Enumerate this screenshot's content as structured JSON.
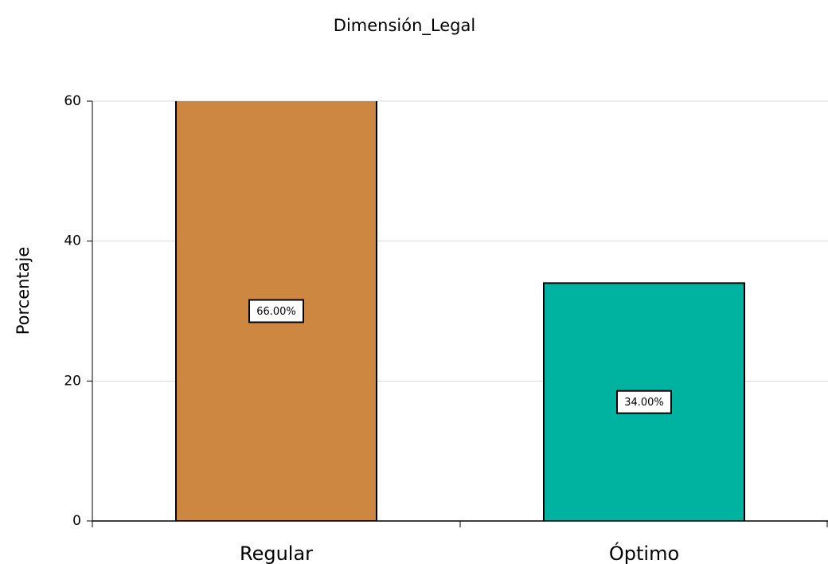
{
  "chart_data": {
    "type": "bar",
    "title": "Dimensión_Legal",
    "y_label": "Porcentaje",
    "categories": [
      "Regular",
      "Óptimo"
    ],
    "values": [
      66,
      34
    ],
    "value_labels": [
      "66.00%",
      "34.00%"
    ],
    "colors": [
      "#cd8741",
      "#00b3a0"
    ],
    "ylim": [
      0,
      60
    ],
    "yticks": [
      0,
      20,
      40,
      60
    ],
    "grid": true
  }
}
